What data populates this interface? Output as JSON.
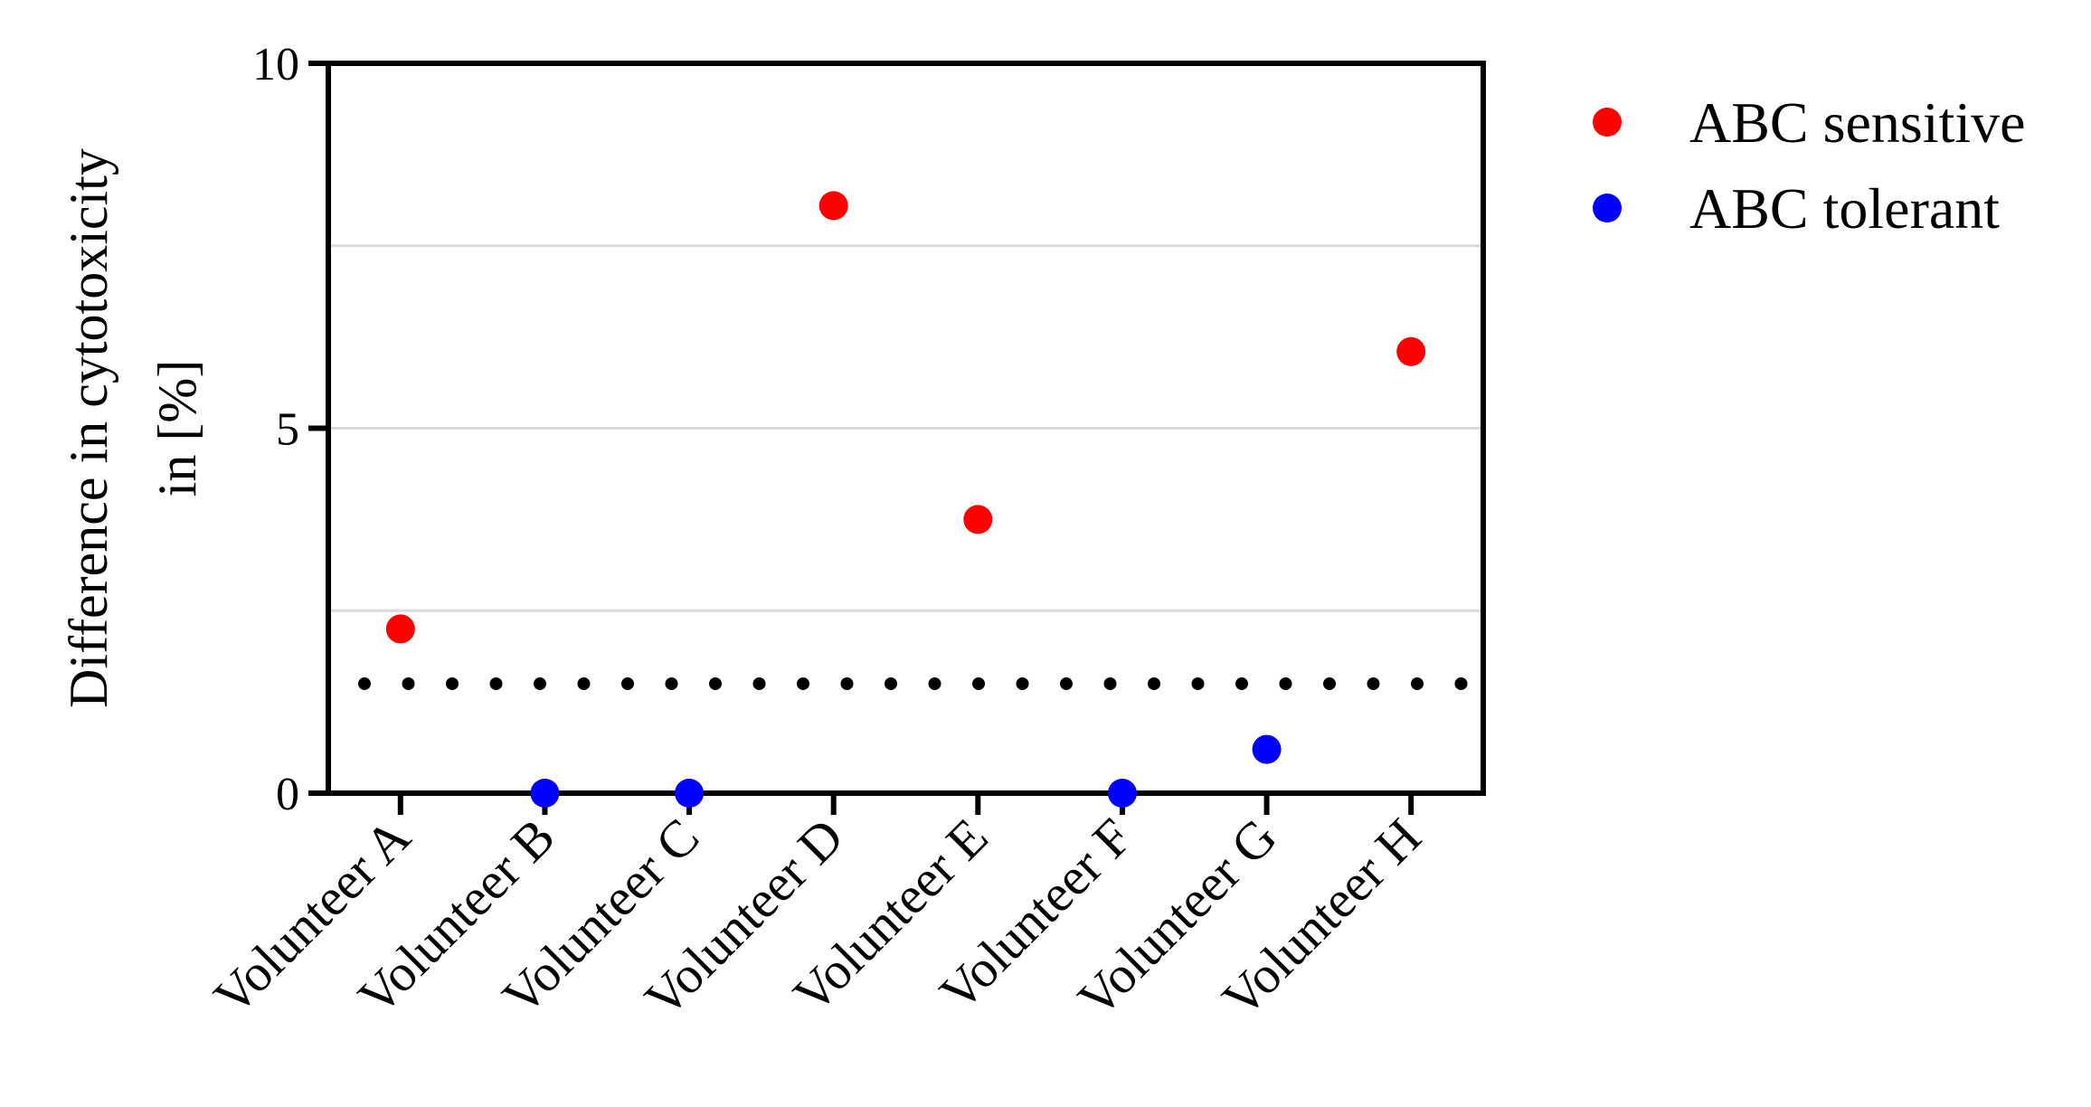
{
  "chart_data": {
    "type": "scatter",
    "title": "",
    "xlabel": "",
    "ylabel_lines": [
      "Difference in cytotoxicity",
      "in [%]"
    ],
    "categories": [
      "Volunteer A",
      "Volunteer B",
      "Volunteer C",
      "Volunteer D",
      "Volunteer E",
      "Volunteer F",
      "Volunteer G",
      "Volunteer H"
    ],
    "ylim": [
      0,
      10
    ],
    "yticks": [
      0,
      5,
      10
    ],
    "ytick_labels": [
      "0",
      "5",
      "10"
    ],
    "gridlines_y": [
      2.5,
      5,
      7.5
    ],
    "threshold": 1.5,
    "threshold_style": "dotted",
    "legend_position": "top-right",
    "series": [
      {
        "name": "ABC sensitive",
        "color": "#ff0000",
        "points": [
          {
            "category": "Volunteer A",
            "value": 2.25
          },
          {
            "category": "Volunteer D",
            "value": 8.05
          },
          {
            "category": "Volunteer E",
            "value": 3.75
          },
          {
            "category": "Volunteer H",
            "value": 6.05
          }
        ]
      },
      {
        "name": "ABC tolerant",
        "color": "#0000ff",
        "points": [
          {
            "category": "Volunteer B",
            "value": 0
          },
          {
            "category": "Volunteer C",
            "value": 0
          },
          {
            "category": "Volunteer F",
            "value": 0
          },
          {
            "category": "Volunteer G",
            "value": 0.6
          }
        ]
      }
    ]
  }
}
